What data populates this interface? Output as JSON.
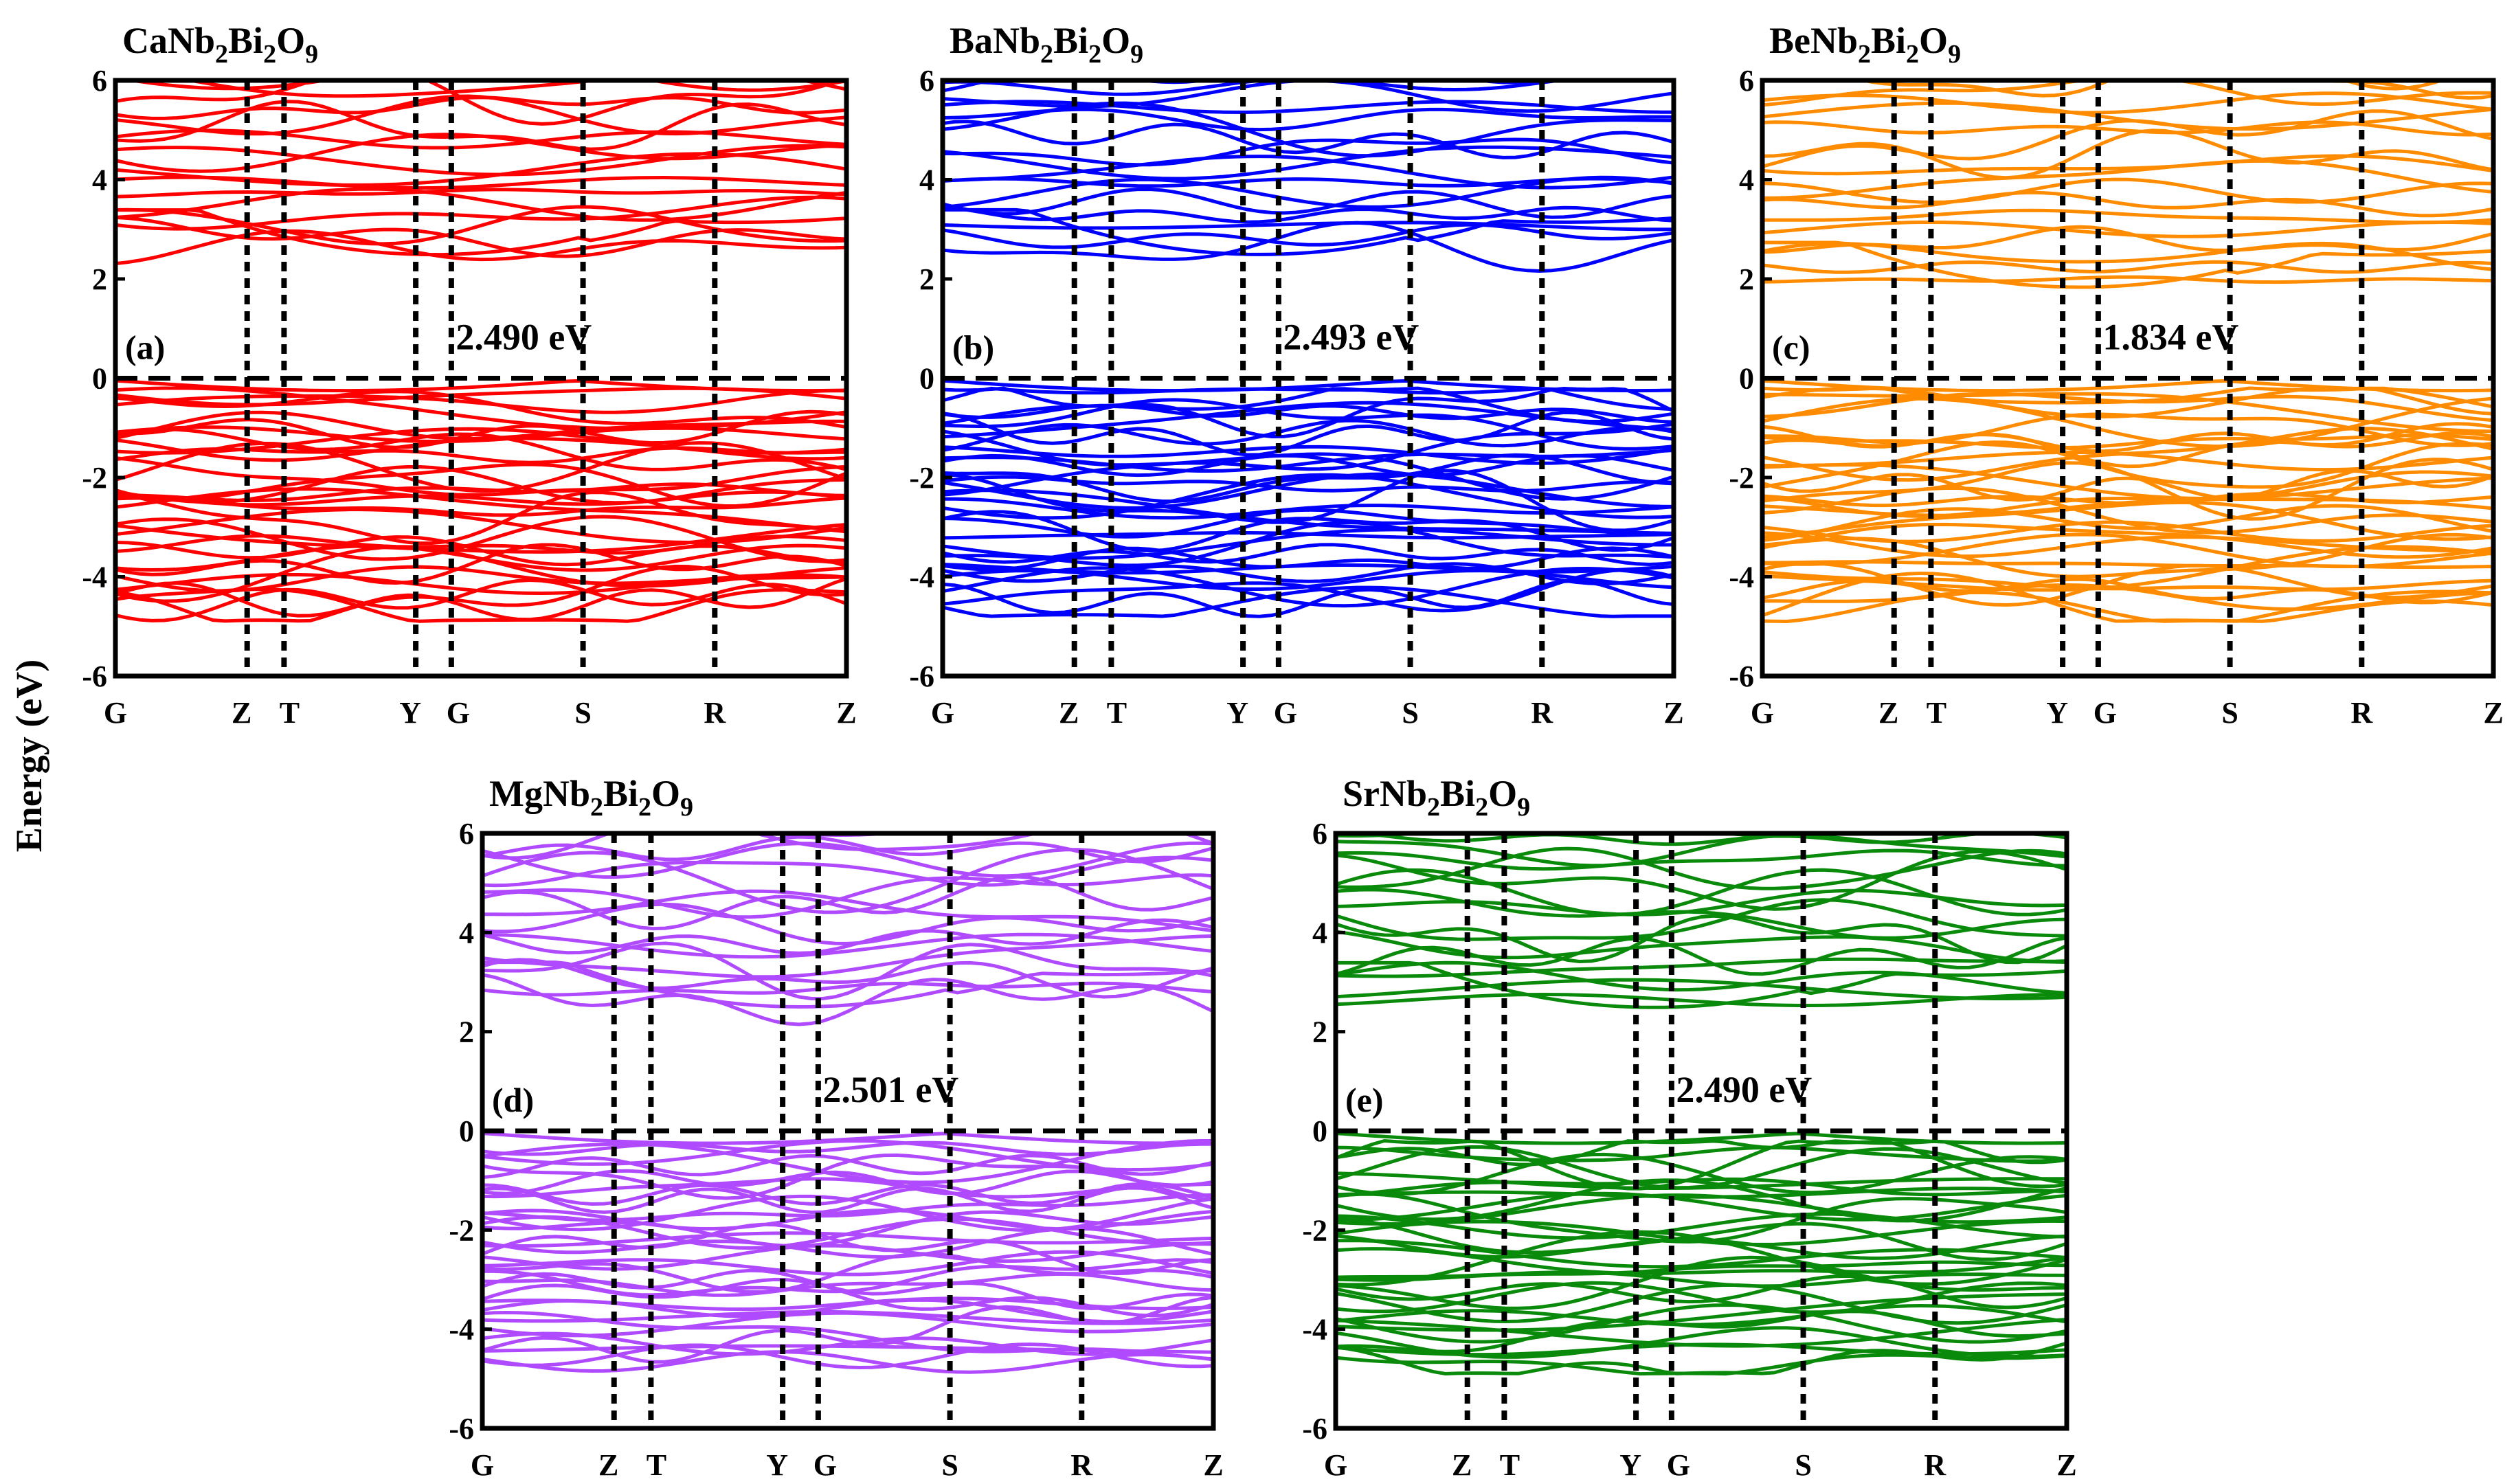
{
  "figure": {
    "y_axis_label": "Energy (eV)"
  },
  "chart_data": [
    {
      "type": "line",
      "panel": "(a)",
      "title": {
        "main1": "CaNb",
        "sub1": "2",
        "main2": "Bi",
        "sub2": "2",
        "main3": "O",
        "sub3": "9"
      },
      "title_text": "CaNb2Bi2O9",
      "color": "#ff0000",
      "band_gap_label": "2.490 eV",
      "band_gap_eV": 2.49,
      "ylim": [
        -6,
        6
      ],
      "yticks": [
        6,
        4,
        2,
        0,
        -2,
        -4,
        -6
      ],
      "k_points": [
        "G",
        "Z",
        "T",
        "Y",
        "G",
        "S",
        "R",
        "Z"
      ],
      "k_positions": [
        0,
        1.0,
        1.28,
        2.28,
        2.55,
        3.55,
        4.55,
        5.55
      ],
      "fermi_level": 0,
      "cbm_eV": 2.49,
      "vbm_eV": 0.0,
      "conduction_band_range_eV": [
        2.49,
        6
      ],
      "valence_band_range_eV": [
        -4.9,
        0.0
      ]
    },
    {
      "type": "line",
      "panel": "(b)",
      "title": {
        "main1": "BaNb",
        "sub1": "2",
        "main2": "Bi",
        "sub2": "2",
        "main3": "O",
        "sub3": "9"
      },
      "title_text": "BaNb2Bi2O9",
      "color": "#0000ff",
      "band_gap_label": "2.493 eV",
      "band_gap_eV": 2.493,
      "ylim": [
        -6,
        6
      ],
      "yticks": [
        6,
        4,
        2,
        0,
        -2,
        -4,
        -6
      ],
      "k_points": [
        "G",
        "Z",
        "T",
        "Y",
        "G",
        "S",
        "R",
        "Z"
      ],
      "k_positions": [
        0,
        1.0,
        1.28,
        2.28,
        2.55,
        3.55,
        4.55,
        5.55
      ],
      "fermi_level": 0,
      "cbm_eV": 2.493,
      "vbm_eV": 0.0,
      "conduction_band_range_eV": [
        2.49,
        6
      ],
      "valence_band_range_eV": [
        -4.8,
        0.0
      ]
    },
    {
      "type": "line",
      "panel": "(c)",
      "title": {
        "main1": "BeNb",
        "sub1": "2",
        "main2": "Bi",
        "sub2": "2",
        "main3": "O",
        "sub3": "9"
      },
      "title_text": "BeNb2Bi2O9",
      "color": "#ff8c00",
      "band_gap_label": "1.834 eV",
      "band_gap_eV": 1.834,
      "ylim": [
        -6,
        6
      ],
      "yticks": [
        6,
        4,
        2,
        0,
        -2,
        -4,
        -6
      ],
      "k_points": [
        "G",
        "Z",
        "T",
        "Y",
        "G",
        "S",
        "R",
        "Z"
      ],
      "k_positions": [
        0,
        1.0,
        1.28,
        2.28,
        2.55,
        3.55,
        4.55,
        5.55
      ],
      "fermi_level": 0,
      "cbm_eV": 1.834,
      "vbm_eV": 0.0,
      "conduction_band_range_eV": [
        1.83,
        6
      ],
      "valence_band_range_eV": [
        -4.9,
        0.0
      ]
    },
    {
      "type": "line",
      "panel": "(d)",
      "title": {
        "main1": "MgNb",
        "sub1": "2",
        "main2": "Bi",
        "sub2": "2",
        "main3": "O",
        "sub3": "9"
      },
      "title_text": "MgNb2Bi2O9",
      "color": "#b04aff",
      "band_gap_label": "2.501 eV",
      "band_gap_eV": 2.501,
      "ylim": [
        -6,
        6
      ],
      "yticks": [
        6,
        4,
        2,
        0,
        -2,
        -4,
        -6
      ],
      "k_points": [
        "G",
        "Z",
        "T",
        "Y",
        "G",
        "S",
        "R",
        "Z"
      ],
      "k_positions": [
        0,
        1.0,
        1.28,
        2.28,
        2.55,
        3.55,
        4.55,
        5.55
      ],
      "fermi_level": 0,
      "cbm_eV": 2.501,
      "vbm_eV": 0.0,
      "conduction_band_range_eV": [
        2.5,
        6
      ],
      "valence_band_range_eV": [
        -4.9,
        0.0
      ]
    },
    {
      "type": "line",
      "panel": "(e)",
      "title": {
        "main1": "SrNb",
        "sub1": "2",
        "main2": "Bi",
        "sub2": "2",
        "main3": "O",
        "sub3": "9"
      },
      "title_text": "SrNb2Bi2O9",
      "color": "#0a8a0a",
      "band_gap_label": "2.490 eV",
      "band_gap_eV": 2.49,
      "ylim": [
        -6,
        6
      ],
      "yticks": [
        6,
        4,
        2,
        0,
        -2,
        -4,
        -6
      ],
      "k_points": [
        "G",
        "Z",
        "T",
        "Y",
        "G",
        "S",
        "R",
        "Z"
      ],
      "k_positions": [
        0,
        1.0,
        1.28,
        2.28,
        2.55,
        3.55,
        4.55,
        5.55
      ],
      "fermi_level": 0,
      "cbm_eV": 2.49,
      "vbm_eV": 0.0,
      "conduction_band_range_eV": [
        2.49,
        6
      ],
      "valence_band_range_eV": [
        -4.9,
        0.0
      ]
    }
  ]
}
